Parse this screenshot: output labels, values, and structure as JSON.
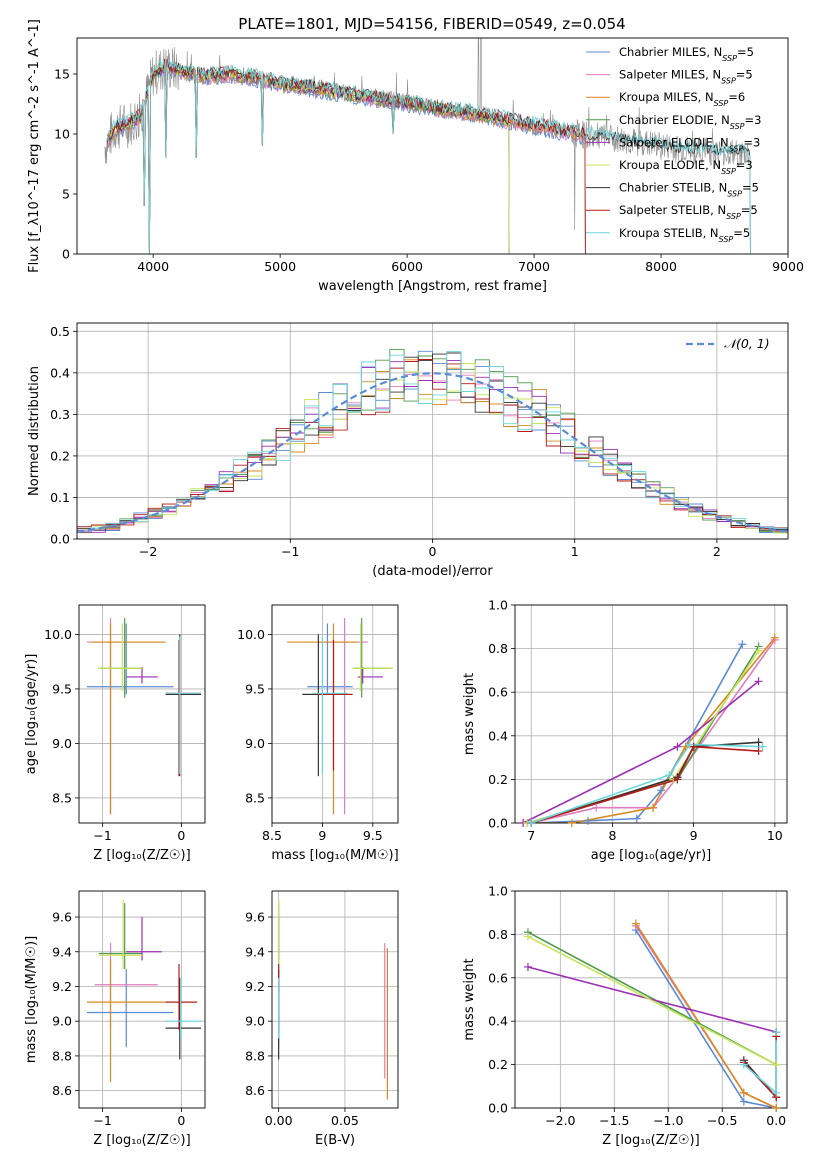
{
  "figure": {
    "title": "PLATE=1801, MJD=54156, FIBERID=0549, z=0.054"
  },
  "colors": {
    "Chabrier MILES": "#5b8bd6",
    "Salpeter MILES": "#e37bbd",
    "Kroupa MILES": "#d98a1f",
    "Chabrier ELODIE": "#4e9a4e",
    "Salpeter ELODIE": "#9b2fb5",
    "Kroupa ELODIE": "#c7e35a",
    "Chabrier STELIB": "#333333",
    "Salpeter STELIB": "#b51c1c",
    "Kroupa STELIB": "#6ad6dc",
    "data": "#8a8a8a"
  },
  "chart_data": [
    {
      "type": "line",
      "panel": "spectrum",
      "xlabel": "wavelength [Angstrom, rest frame]",
      "ylabel": "Flux [f_λ10^-17 erg cm^-2 s^-1 A^-1]",
      "xlim": [
        3400,
        9000
      ],
      "ylim": [
        0,
        18
      ],
      "xticks": [
        "4000",
        "5000",
        "6000",
        "7000",
        "8000",
        "9000"
      ],
      "yticks": [
        "0",
        "5",
        "10",
        "15"
      ],
      "legend_position": "upper-right",
      "legend": [
        {
          "label": "Chabrier MILES, N",
          "sub": "SSP",
          "suffix": "=5"
        },
        {
          "label": "Salpeter MILES, N",
          "sub": "SSP",
          "suffix": "=5"
        },
        {
          "label": "Kroupa MILES, N",
          "sub": "SSP",
          "suffix": "=6"
        },
        {
          "label": "Chabrier ELODIE, N",
          "sub": "SSP",
          "suffix": "=3"
        },
        {
          "label": "Salpeter ELODIE, N",
          "sub": "SSP",
          "suffix": "=3"
        },
        {
          "label": "Kroupa ELODIE, N",
          "sub": "SSP",
          "suffix": "=3"
        },
        {
          "label": "Chabrier STELIB, N",
          "sub": "SSP",
          "suffix": "=5"
        },
        {
          "label": "Salpeter STELIB, N",
          "sub": "SSP",
          "suffix": "=5"
        },
        {
          "label": "Kroupa STELIB, N",
          "sub": "SSP",
          "suffix": "=5"
        }
      ],
      "continuum": [
        [
          3620,
          9.0
        ],
        [
          3700,
          10.5
        ],
        [
          3800,
          10.8
        ],
        [
          3900,
          11.5
        ],
        [
          4000,
          15.0
        ],
        [
          4100,
          15.6
        ],
        [
          4200,
          15.3
        ],
        [
          4400,
          14.8
        ],
        [
          4600,
          15.0
        ],
        [
          4800,
          14.7
        ],
        [
          5000,
          14.2
        ],
        [
          5200,
          13.9
        ],
        [
          5400,
          13.6
        ],
        [
          5600,
          13.2
        ],
        [
          5800,
          12.9
        ],
        [
          6000,
          12.6
        ],
        [
          6200,
          12.2
        ],
        [
          6400,
          11.9
        ],
        [
          6600,
          11.6
        ],
        [
          6800,
          11.1
        ],
        [
          7000,
          10.7
        ],
        [
          7200,
          10.3
        ],
        [
          7400,
          9.9
        ],
        [
          7600,
          9.6
        ],
        [
          7800,
          9.3
        ],
        [
          8000,
          9.0
        ],
        [
          8200,
          8.7
        ],
        [
          8400,
          8.5
        ],
        [
          8700,
          8.3
        ]
      ],
      "model_x_end": {
        "Chabrier MILES": 7400,
        "Salpeter MILES": 7400,
        "Kroupa MILES": 7400,
        "Chabrier ELODIE": 6800,
        "Salpeter ELODIE": 6800,
        "Kroupa ELODIE": 6800,
        "Chabrier STELIB": 8700,
        "Salpeter STELIB": 7400,
        "Kroupa STELIB": 8700
      },
      "absorption_lines": [
        [
          3933,
          4
        ],
        [
          3968,
          0
        ],
        [
          4102,
          8
        ],
        [
          4340,
          8
        ],
        [
          4861,
          9
        ],
        [
          5175,
          9.5
        ],
        [
          5893,
          10
        ]
      ],
      "emission_lines": [
        [
          6563,
          18
        ],
        [
          6583,
          18
        ],
        [
          7320,
          2
        ]
      ]
    },
    {
      "type": "bar",
      "panel": "residual-histogram",
      "xlabel": "(data-model)/error",
      "ylabel": "Normed distribution",
      "xlim": [
        -2.5,
        2.5
      ],
      "ylim": [
        0,
        0.52
      ],
      "xticks": [
        "−2",
        "−1",
        "0",
        "1",
        "2"
      ],
      "yticks": [
        "0.0",
        "0.1",
        "0.2",
        "0.3",
        "0.4",
        "0.5"
      ],
      "bin_width": 0.1,
      "legend": "𝒩(0, 1)",
      "legend_position": "upper-right",
      "gaussian": {
        "mean": 0,
        "sigma": 1
      }
    },
    {
      "type": "scatter",
      "panel": "age-vs-Z",
      "xlabel": "Z [log₁₀(Z/Z☉)]",
      "ylabel": "age  [log₁₀(age/yr)]",
      "xlim": [
        -1.3,
        0.3
      ],
      "ylim": [
        8.27,
        10.27
      ],
      "xticks": [
        -1,
        0
      ],
      "yticks": [
        8.5,
        9.0,
        9.5,
        10.0
      ],
      "points": [
        {
          "s": "Chabrier MILES",
          "x": -0.7,
          "y": 9.52,
          "xe": [
            -1.2,
            -0.1
          ],
          "ye": [
            9.45,
            10.1
          ]
        },
        {
          "s": "Salpeter MILES",
          "x": -0.9,
          "y": 9.93,
          "xe": [
            -1.2,
            -0.2
          ],
          "ye": [
            8.35,
            10.15
          ]
        },
        {
          "s": "Kroupa MILES",
          "x": -0.9,
          "y": 9.93,
          "xe": [
            -1.15,
            -0.2
          ],
          "ye": [
            8.35,
            10.1
          ]
        },
        {
          "s": "Chabrier ELODIE",
          "x": -0.72,
          "y": 9.69,
          "xe": [
            -1.05,
            -0.5
          ],
          "ye": [
            9.42,
            10.15
          ]
        },
        {
          "s": "Salpeter ELODIE",
          "x": -0.5,
          "y": 9.61,
          "xe": [
            -0.7,
            -0.3
          ],
          "ye": [
            9.55,
            9.7
          ]
        },
        {
          "s": "Kroupa ELODIE",
          "x": -0.75,
          "y": 9.69,
          "xe": [
            -1.05,
            -0.5
          ],
          "ye": [
            9.48,
            10.1
          ]
        },
        {
          "s": "Chabrier STELIB",
          "x": -0.02,
          "y": 9.45,
          "xe": [
            -0.2,
            0.25
          ],
          "ye": [
            8.7,
            10.0
          ]
        },
        {
          "s": "Salpeter STELIB",
          "x": -0.03,
          "y": 9.46,
          "xe": [
            -0.2,
            0.25
          ],
          "ye": [
            8.7,
            9.95
          ]
        },
        {
          "s": "Kroupa STELIB",
          "x": -0.02,
          "y": 9.46,
          "xe": [
            -0.2,
            0.25
          ],
          "ye": [
            8.72,
            9.98
          ]
        }
      ]
    },
    {
      "type": "scatter",
      "panel": "age-vs-mass",
      "xlabel": "mass [log₁₀(M/M☉)]",
      "ylabel": "",
      "xlim": [
        8.5,
        9.75
      ],
      "ylim": [
        8.27,
        10.27
      ],
      "xticks": [
        8.5,
        9.0,
        9.5
      ],
      "yticks": [
        8.5,
        9.0,
        9.5,
        10.0
      ],
      "points": [
        {
          "s": "Chabrier MILES",
          "x": 9.05,
          "y": 9.52,
          "xe": [
            8.85,
            9.3
          ],
          "ye": [
            9.45,
            10.1
          ]
        },
        {
          "s": "Salpeter MILES",
          "x": 9.22,
          "y": 9.93,
          "xe": [
            8.95,
            9.45
          ],
          "ye": [
            8.35,
            10.15
          ]
        },
        {
          "s": "Kroupa MILES",
          "x": 9.11,
          "y": 9.93,
          "xe": [
            8.65,
            9.35
          ],
          "ye": [
            8.35,
            10.1
          ]
        },
        {
          "s": "Chabrier ELODIE",
          "x": 9.39,
          "y": 9.69,
          "xe": [
            9.3,
            9.68
          ],
          "ye": [
            9.42,
            10.15
          ]
        },
        {
          "s": "Salpeter ELODIE",
          "x": 9.4,
          "y": 9.61,
          "xe": [
            9.35,
            9.6
          ],
          "ye": [
            9.55,
            9.7
          ]
        },
        {
          "s": "Kroupa ELODIE",
          "x": 9.38,
          "y": 9.69,
          "xe": [
            9.3,
            9.7
          ],
          "ye": [
            9.48,
            10.1
          ]
        },
        {
          "s": "Chabrier STELIB",
          "x": 8.96,
          "y": 9.45,
          "xe": [
            8.8,
            9.25
          ],
          "ye": [
            8.7,
            10.0
          ]
        },
        {
          "s": "Salpeter STELIB",
          "x": 9.11,
          "y": 9.45,
          "xe": [
            8.95,
            9.3
          ],
          "ye": [
            8.75,
            9.95
          ]
        },
        {
          "s": "Kroupa STELIB",
          "x": 9.0,
          "y": 9.46,
          "xe": [
            8.9,
            9.25
          ],
          "ye": [
            8.72,
            9.98
          ]
        }
      ]
    },
    {
      "type": "line",
      "panel": "mass-weight-vs-age",
      "xlabel": "age  [log₁₀(age/yr)]",
      "ylabel": "mass weight",
      "xlim": [
        6.8,
        10.15
      ],
      "ylim": [
        0,
        1.0
      ],
      "xticks": [
        7,
        8,
        9,
        10
      ],
      "yticks": [
        "0.0",
        "0.2",
        "0.4",
        "0.6",
        "0.8",
        "1.0"
      ],
      "series": [
        {
          "s": "Chabrier MILES",
          "x": [
            7.0,
            7.7,
            8.3,
            8.6,
            9.6
          ],
          "y": [
            0.0,
            0.01,
            0.02,
            0.15,
            0.82
          ]
        },
        {
          "s": "Salpeter MILES",
          "x": [
            7.0,
            7.8,
            8.5,
            8.8,
            10.0
          ],
          "y": [
            0.0,
            0.07,
            0.07,
            0.21,
            0.84
          ]
        },
        {
          "s": "Kroupa MILES",
          "x": [
            6.9,
            7.5,
            8.5,
            8.9,
            10.0
          ],
          "y": [
            0.0,
            0.0,
            0.07,
            0.35,
            0.85
          ]
        },
        {
          "s": "Chabrier ELODIE",
          "x": [
            6.95,
            8.8,
            9.8
          ],
          "y": [
            0.0,
            0.2,
            0.81
          ]
        },
        {
          "s": "Salpeter ELODIE",
          "x": [
            6.9,
            8.8,
            9.8
          ],
          "y": [
            0.0,
            0.35,
            0.65
          ]
        },
        {
          "s": "Kroupa ELODIE",
          "x": [
            6.95,
            8.75,
            9.8
          ],
          "y": [
            0.0,
            0.2,
            0.79
          ]
        },
        {
          "s": "Chabrier STELIB",
          "x": [
            7.0,
            8.8,
            9.0,
            9.8
          ],
          "y": [
            0.0,
            0.21,
            0.35,
            0.37
          ]
        },
        {
          "s": "Salpeter STELIB",
          "x": [
            7.0,
            8.8,
            9.0,
            9.8
          ],
          "y": [
            0.0,
            0.2,
            0.35,
            0.33
          ]
        },
        {
          "s": "Kroupa STELIB",
          "x": [
            7.0,
            8.7,
            8.95,
            9.85
          ],
          "y": [
            0.0,
            0.22,
            0.36,
            0.35
          ]
        }
      ]
    },
    {
      "type": "scatter",
      "panel": "mass-vs-Z",
      "xlabel": "Z [log₁₀(Z/Z☉)]",
      "ylabel": "mass [log₁₀(M/M☉)]",
      "xlim": [
        -1.3,
        0.3
      ],
      "ylim": [
        8.5,
        9.75
      ],
      "xticks": [
        -1,
        0
      ],
      "yticks": [
        8.6,
        8.8,
        9.0,
        9.2,
        9.4,
        9.6
      ],
      "points": [
        {
          "s": "Chabrier MILES",
          "x": -0.7,
          "y": 9.05,
          "xe": [
            -1.2,
            -0.1
          ],
          "ye": [
            8.85,
            9.3
          ]
        },
        {
          "s": "Salpeter MILES",
          "x": -0.9,
          "y": 9.21,
          "xe": [
            -1.1,
            -0.3
          ],
          "ye": [
            8.95,
            9.45
          ]
        },
        {
          "s": "Kroupa MILES",
          "x": -0.9,
          "y": 9.11,
          "xe": [
            -1.2,
            -0.2
          ],
          "ye": [
            8.65,
            9.35
          ]
        },
        {
          "s": "Chabrier ELODIE",
          "x": -0.72,
          "y": 9.39,
          "xe": [
            -1.05,
            -0.5
          ],
          "ye": [
            9.3,
            9.68
          ]
        },
        {
          "s": "Salpeter ELODIE",
          "x": -0.5,
          "y": 9.4,
          "xe": [
            -0.7,
            -0.25
          ],
          "ye": [
            9.35,
            9.6
          ]
        },
        {
          "s": "Kroupa ELODIE",
          "x": -0.74,
          "y": 9.38,
          "xe": [
            -1.05,
            -0.5
          ],
          "ye": [
            9.3,
            9.7
          ]
        },
        {
          "s": "Chabrier STELIB",
          "x": -0.02,
          "y": 8.96,
          "xe": [
            -0.2,
            0.25
          ],
          "ye": [
            8.78,
            9.25
          ]
        },
        {
          "s": "Salpeter STELIB",
          "x": -0.03,
          "y": 9.11,
          "xe": [
            -0.2,
            0.2
          ],
          "ye": [
            8.95,
            9.33
          ]
        },
        {
          "s": "Kroupa STELIB",
          "x": -0.01,
          "y": 9.0,
          "xe": [
            -0.2,
            0.25
          ],
          "ye": [
            8.9,
            9.25
          ]
        }
      ]
    },
    {
      "type": "scatter",
      "panel": "mass-vs-EBV",
      "xlabel": "E(B-V)",
      "ylabel": "",
      "xlim": [
        -0.005,
        0.09
      ],
      "ylim": [
        8.5,
        9.75
      ],
      "xticks": [
        "0.00",
        "0.05"
      ],
      "yticks": [
        8.6,
        8.8,
        9.0,
        9.2,
        9.4,
        9.6
      ],
      "points": [
        {
          "s": "Chabrier MILES",
          "x": 0.0,
          "y": 9.05,
          "ye": [
            8.85,
            9.3
          ]
        },
        {
          "s": "Salpeter MILES",
          "x": 0.08,
          "y": 9.21,
          "ye": [
            8.67,
            9.45
          ]
        },
        {
          "s": "Kroupa MILES",
          "x": 0.082,
          "y": 9.11,
          "ye": [
            8.55,
            9.42
          ]
        },
        {
          "s": "Chabrier ELODIE",
          "x": 0.0,
          "y": 9.5,
          "ye": [
            9.3,
            9.68
          ]
        },
        {
          "s": "Salpeter ELODIE",
          "x": 0.0,
          "y": 9.45,
          "ye": [
            9.35,
            9.6
          ]
        },
        {
          "s": "Kroupa ELODIE",
          "x": 0.0,
          "y": 9.5,
          "ye": [
            9.3,
            9.7
          ]
        },
        {
          "s": "Chabrier STELIB",
          "x": 0.0,
          "y": 9.0,
          "ye": [
            8.78,
            9.3
          ]
        },
        {
          "s": "Salpeter STELIB",
          "x": 0.0,
          "y": 9.1,
          "ye": [
            8.95,
            9.33
          ]
        },
        {
          "s": "Kroupa STELIB",
          "x": 0.0,
          "y": 9.0,
          "ye": [
            8.9,
            9.25
          ]
        }
      ]
    },
    {
      "type": "line",
      "panel": "mass-weight-vs-Z",
      "xlabel": "Z [log₁₀(Z/Z☉)]",
      "ylabel": "mass weight",
      "xlim": [
        -2.42,
        0.1
      ],
      "ylim": [
        0,
        1.0
      ],
      "xticks": [
        "−2.0",
        "−1.5",
        "−1.0",
        "−0.5",
        "0.0"
      ],
      "yticks": [
        "0.0",
        "0.2",
        "0.4",
        "0.6",
        "0.8",
        "1.0"
      ],
      "series": [
        {
          "s": "Chabrier MILES",
          "x": [
            -1.3,
            -0.3,
            0.0
          ],
          "y": [
            0.82,
            0.03,
            0.0
          ]
        },
        {
          "s": "Salpeter MILES",
          "x": [
            -1.3,
            -0.3,
            0.0
          ],
          "y": [
            0.84,
            0.07,
            0.0
          ]
        },
        {
          "s": "Kroupa MILES",
          "x": [
            -1.3,
            -0.3,
            0.0
          ],
          "y": [
            0.85,
            0.07,
            0.0
          ]
        },
        {
          "s": "Chabrier ELODIE",
          "x": [
            -2.3,
            0.0
          ],
          "y": [
            0.81,
            0.2
          ]
        },
        {
          "s": "Salpeter ELODIE",
          "x": [
            -2.3,
            0.0
          ],
          "y": [
            0.65,
            0.35
          ]
        },
        {
          "s": "Kroupa ELODIE",
          "x": [
            -2.3,
            0.0
          ],
          "y": [
            0.79,
            0.2
          ]
        },
        {
          "s": "Chabrier STELIB",
          "x": [
            -0.3,
            0.0,
            0.0
          ],
          "y": [
            0.22,
            0.05,
            0.35
          ]
        },
        {
          "s": "Salpeter STELIB",
          "x": [
            -0.3,
            0.0,
            0.0
          ],
          "y": [
            0.21,
            0.05,
            0.33
          ]
        },
        {
          "s": "Kroupa STELIB",
          "x": [
            -0.3,
            0.0,
            0.0
          ],
          "y": [
            0.2,
            0.07,
            0.35
          ]
        }
      ]
    }
  ]
}
